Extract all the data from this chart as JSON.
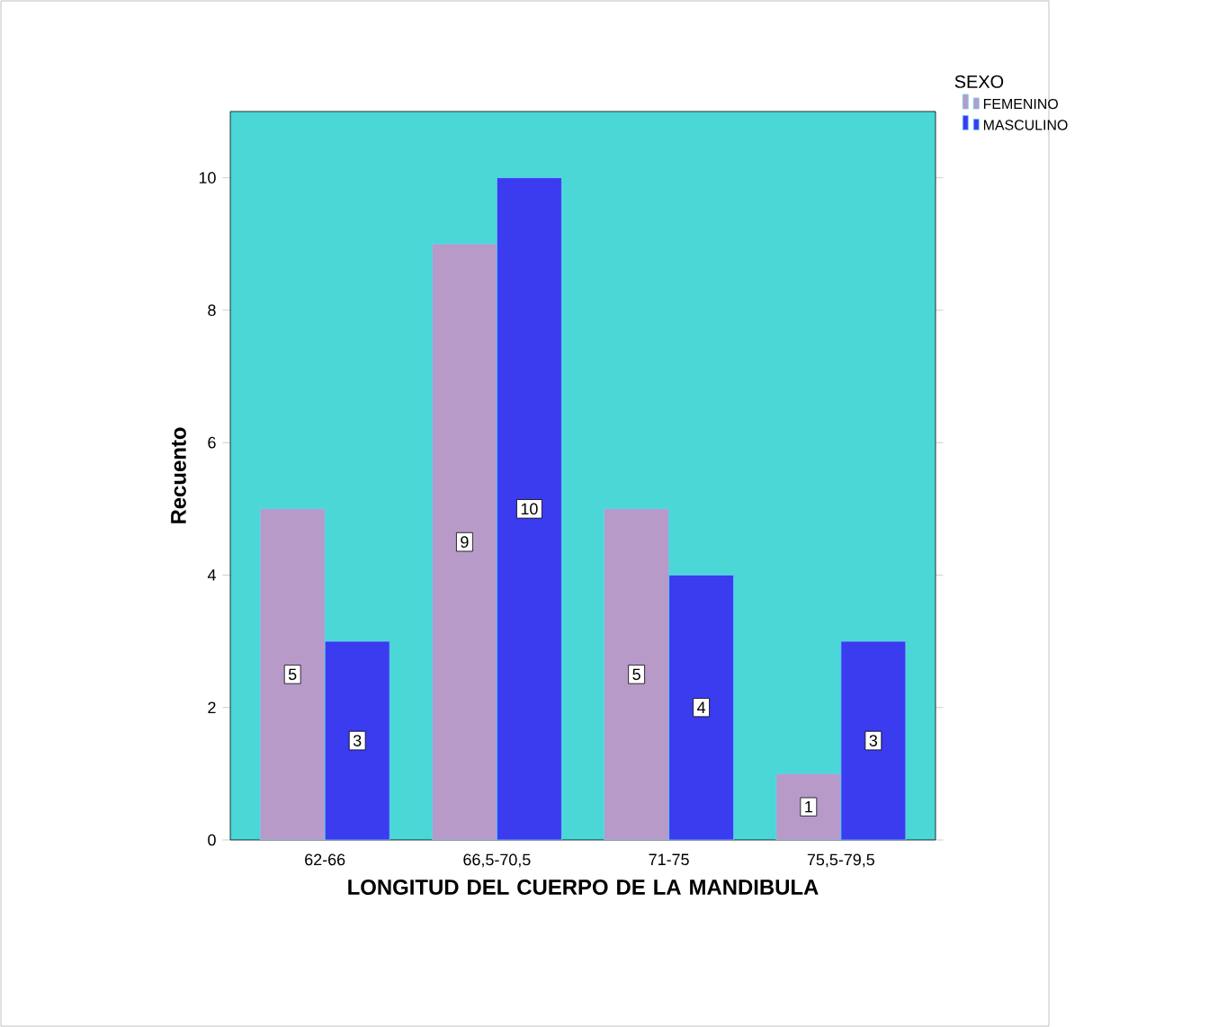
{
  "chart_data": {
    "type": "bar",
    "xlabel": "LONGITUD DEL CUERPO DE LA MANDIBULA",
    "ylabel": "Recuento",
    "legend_title": "SEXO",
    "categories": [
      "62-66",
      "66,5-70,5",
      "71-75",
      "75,5-79,5"
    ],
    "series": [
      {
        "name": "FEMENINO",
        "color": "#b79ac8",
        "values": [
          5,
          9,
          5,
          1
        ]
      },
      {
        "name": "MASCULINO",
        "color": "#3b3bf0",
        "values": [
          3,
          10,
          4,
          3
        ]
      }
    ],
    "ylim": [
      0,
      11
    ],
    "yticks": [
      0,
      2,
      4,
      6,
      8,
      10
    ],
    "data_labels": true,
    "legend": "top right"
  }
}
